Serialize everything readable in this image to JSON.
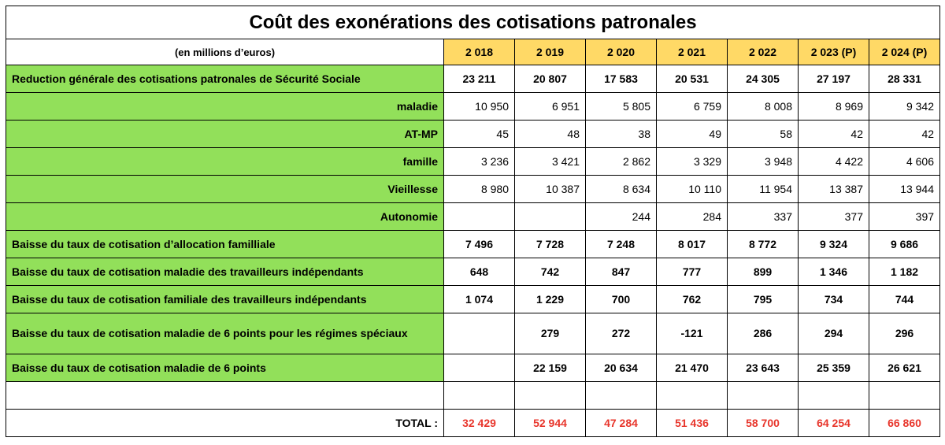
{
  "title": "Coût des exonérations des cotisations patronales",
  "unit_label": "(en millions d’euros)",
  "years": [
    "2 018",
    "2 019",
    "2 020",
    "2 021",
    "2 022",
    "2 023 (P)",
    "2 024 (P)"
  ],
  "rows": [
    {
      "label": "Reduction générale des cotisations patronales de Sécurité Sociale",
      "values": [
        "23 211",
        "20 807",
        "17 583",
        "20 531",
        "24 305",
        "27 197",
        "28 331"
      ]
    },
    {
      "label": "maladie",
      "values": [
        "10 950",
        "6 951",
        "5 805",
        "6 759",
        "8 008",
        "8 969",
        "9 342"
      ]
    },
    {
      "label": "AT-MP",
      "values": [
        "45",
        "48",
        "38",
        "49",
        "58",
        "42",
        "42"
      ]
    },
    {
      "label": "famille",
      "values": [
        "3 236",
        "3 421",
        "2 862",
        "3 329",
        "3 948",
        "4 422",
        "4 606"
      ]
    },
    {
      "label": "Vieillesse",
      "values": [
        "8 980",
        "10 387",
        "8 634",
        "10 110",
        "11 954",
        "13 387",
        "13 944"
      ]
    },
    {
      "label": "Autonomie",
      "values": [
        "",
        "",
        "244",
        "284",
        "337",
        "377",
        "397"
      ]
    },
    {
      "label": "Baisse du taux de cotisation d’allocation familliale",
      "values": [
        "7 496",
        "7 728",
        "7 248",
        "8 017",
        "8 772",
        "9 324",
        "9 686"
      ]
    },
    {
      "label": "Baisse du taux de cotisation maladie des travailleurs indépendants",
      "values": [
        "648",
        "742",
        "847",
        "777",
        "899",
        "1 346",
        "1 182"
      ]
    },
    {
      "label": "Baisse du taux de cotisation familiale des travailleurs indépendants",
      "values": [
        "1 074",
        "1 229",
        "700",
        "762",
        "795",
        "734",
        "744"
      ]
    },
    {
      "label": "Baisse du taux de cotisation maladie de 6 points pour les régimes spéciaux",
      "values": [
        "",
        "279",
        "272",
        "-121",
        "286",
        "294",
        "296"
      ]
    },
    {
      "label": "Baisse du taux de cotisation maladie de 6 points",
      "values": [
        "",
        "22 159",
        "20 634",
        "21 470",
        "23 643",
        "25 359",
        "26 621"
      ]
    }
  ],
  "total": {
    "label": "TOTAL :",
    "values": [
      "32 429",
      "52 944",
      "47 284",
      "51 436",
      "58 700",
      "64 254",
      "66 860"
    ]
  },
  "colors": {
    "year_header": "#ffd966",
    "label_cell": "#92e05a",
    "total_text": "#e8352b"
  }
}
